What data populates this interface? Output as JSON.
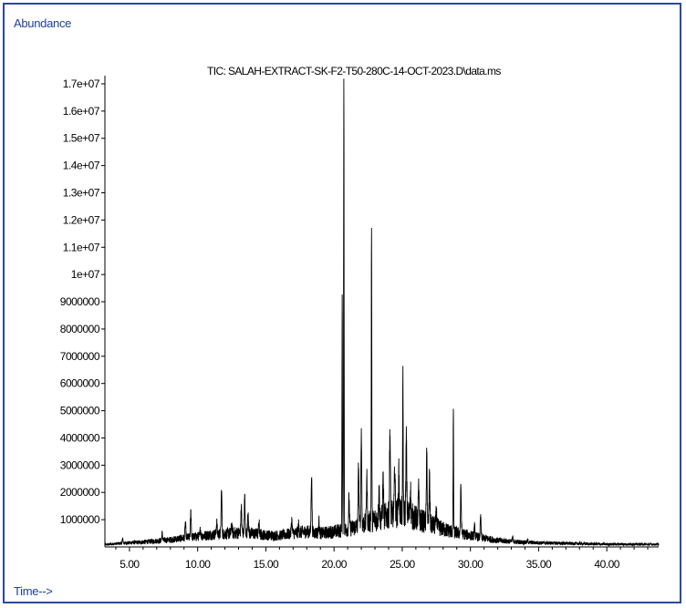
{
  "labels": {
    "y_axis": "Abundance",
    "x_axis": "Time-->"
  },
  "colors": {
    "frame": "#2a4a9a",
    "label_text": "#1f3f9a",
    "trace": "#000000"
  },
  "chart_data": {
    "type": "line",
    "title": "TIC: SALAH-EXTRACT-SK-F2-T50-280C-14-OCT-2023.D\\data.ms",
    "xlabel": "Time-->",
    "ylabel": "Abundance",
    "xlim": [
      3.2,
      43.8
    ],
    "ylim": [
      0,
      17300000
    ],
    "x_ticks": [
      5,
      10,
      15,
      20,
      25,
      30,
      35,
      40
    ],
    "x_tick_labels": [
      "5.00",
      "10.00",
      "15.00",
      "20.00",
      "25.00",
      "30.00",
      "35.00",
      "40.00"
    ],
    "y_ticks": [
      1000000,
      2000000,
      3000000,
      4000000,
      5000000,
      6000000,
      7000000,
      8000000,
      9000000,
      10000000,
      11000000,
      12000000,
      13000000,
      14000000,
      15000000,
      16000000,
      17000000
    ],
    "y_tick_labels": [
      "1000000",
      "2000000",
      "3000000",
      "4000000",
      "5000000",
      "6000000",
      "7000000",
      "8000000",
      "9000000",
      "1e+07",
      "1.1e+07",
      "1.2e+07",
      "1.3e+07",
      "1.4e+07",
      "1.5e+07",
      "1.6e+07",
      "1.7e+07"
    ],
    "grid": false,
    "legend": "none",
    "baseline": [
      [
        3.2,
        80000
      ],
      [
        4.0,
        120000
      ],
      [
        5.0,
        150000
      ],
      [
        6.0,
        180000
      ],
      [
        7.0,
        220000
      ],
      [
        8.0,
        260000
      ],
      [
        9.0,
        330000
      ],
      [
        10.0,
        380000
      ],
      [
        11.0,
        450000
      ],
      [
        12.0,
        480000
      ],
      [
        13.0,
        520000
      ],
      [
        14.0,
        500000
      ],
      [
        15.0,
        430000
      ],
      [
        16.0,
        420000
      ],
      [
        17.0,
        500000
      ],
      [
        18.0,
        560000
      ],
      [
        19.0,
        500000
      ],
      [
        20.0,
        560000
      ],
      [
        21.0,
        650000
      ],
      [
        22.0,
        800000
      ],
      [
        23.0,
        1000000
      ],
      [
        24.0,
        1150000
      ],
      [
        25.0,
        1300000
      ],
      [
        26.0,
        1050000
      ],
      [
        27.0,
        850000
      ],
      [
        28.0,
        650000
      ],
      [
        29.0,
        520000
      ],
      [
        30.0,
        420000
      ],
      [
        31.0,
        320000
      ],
      [
        32.0,
        240000
      ],
      [
        33.0,
        200000
      ],
      [
        34.0,
        170000
      ],
      [
        35.0,
        150000
      ],
      [
        36.0,
        140000
      ],
      [
        37.0,
        130000
      ],
      [
        38.0,
        120000
      ],
      [
        39.0,
        110000
      ],
      [
        40.0,
        100000
      ],
      [
        41.0,
        100000
      ],
      [
        42.0,
        100000
      ],
      [
        43.0,
        95000
      ],
      [
        43.8,
        95000
      ]
    ],
    "peaks": [
      [
        4.5,
        300000
      ],
      [
        7.4,
        500000
      ],
      [
        9.1,
        900000
      ],
      [
        9.5,
        1300000
      ],
      [
        10.2,
        650000
      ],
      [
        11.4,
        900000
      ],
      [
        11.75,
        2100000
      ],
      [
        12.5,
        850000
      ],
      [
        13.2,
        1500000
      ],
      [
        13.45,
        1800000
      ],
      [
        13.7,
        1300000
      ],
      [
        14.5,
        900000
      ],
      [
        16.9,
        1000000
      ],
      [
        17.4,
        800000
      ],
      [
        18.35,
        2700000
      ],
      [
        18.9,
        950000
      ],
      [
        20.6,
        9400000
      ],
      [
        20.72,
        17200000
      ],
      [
        21.1,
        1800000
      ],
      [
        21.8,
        3000000
      ],
      [
        22.0,
        4200000
      ],
      [
        22.4,
        2600000
      ],
      [
        22.75,
        11800000
      ],
      [
        23.3,
        2200000
      ],
      [
        23.6,
        2500000
      ],
      [
        24.1,
        4300000
      ],
      [
        24.45,
        3000000
      ],
      [
        24.75,
        2700000
      ],
      [
        25.05,
        6500000
      ],
      [
        25.3,
        4000000
      ],
      [
        25.6,
        2200000
      ],
      [
        26.2,
        2100000
      ],
      [
        26.8,
        3400000
      ],
      [
        27.0,
        2600000
      ],
      [
        27.5,
        1300000
      ],
      [
        28.75,
        5100000
      ],
      [
        29.3,
        2200000
      ],
      [
        30.3,
        750000
      ],
      [
        30.75,
        1100000
      ],
      [
        33.1,
        350000
      ],
      [
        34.2,
        250000
      ]
    ]
  }
}
